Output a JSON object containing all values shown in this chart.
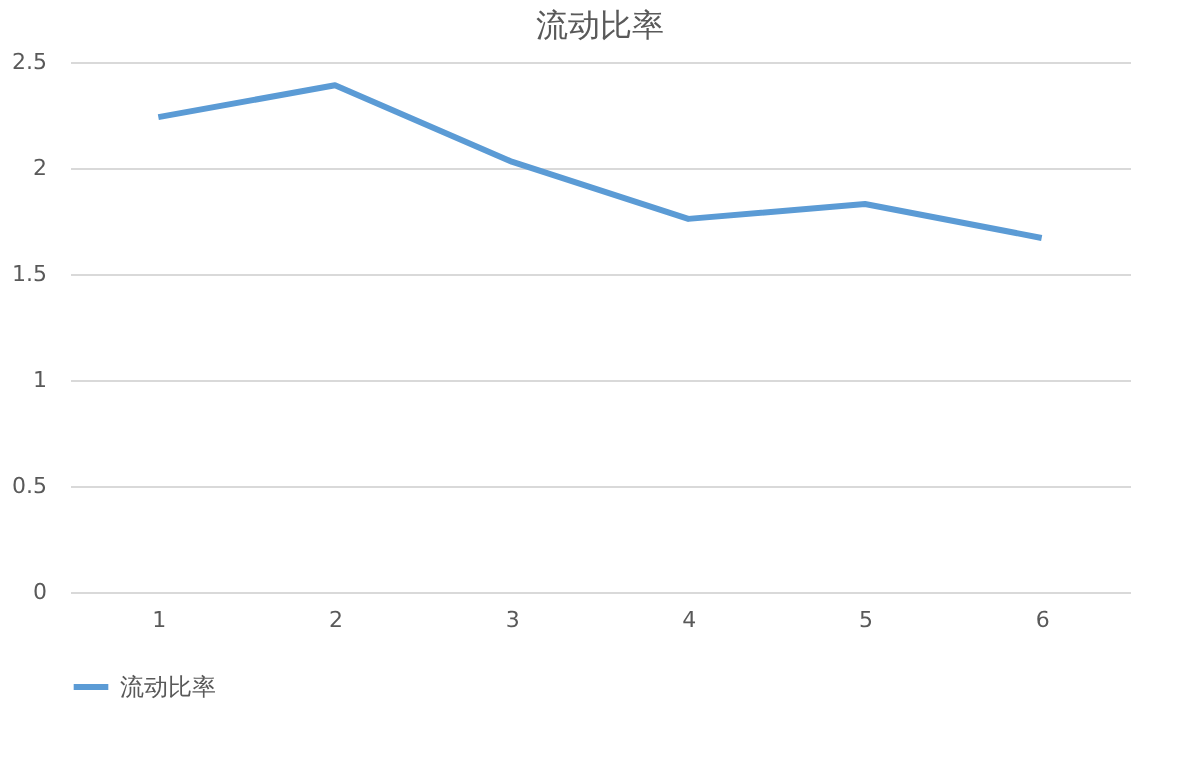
{
  "chart_data": {
    "type": "line",
    "title": "流动比率",
    "categories": [
      "1",
      "2",
      "3",
      "4",
      "5",
      "6"
    ],
    "series": [
      {
        "name": "流动比率",
        "color": "#5b9bd5",
        "values": [
          2.24,
          2.39,
          2.03,
          1.76,
          1.83,
          1.67
        ]
      }
    ],
    "ylim": [
      0,
      2.5
    ],
    "yticks": [
      0,
      0.5,
      1,
      1.5,
      2,
      2.5
    ],
    "grid": "y",
    "legend": "bottom",
    "marker": "none",
    "line_style": "solid"
  }
}
